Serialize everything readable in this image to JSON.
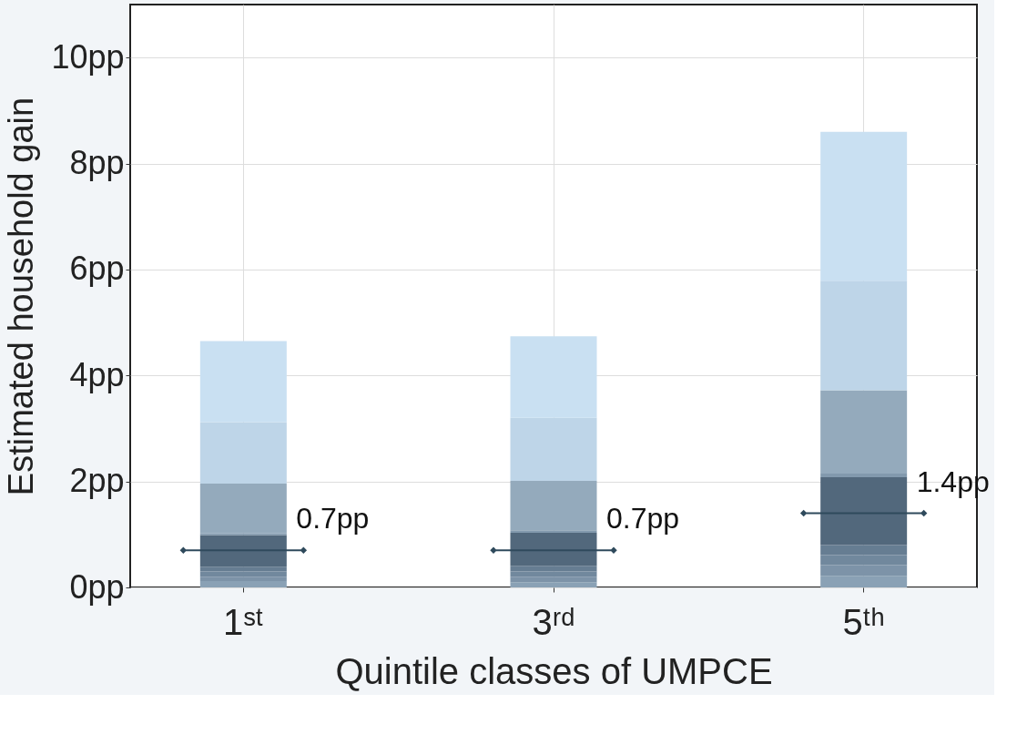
{
  "chart_data": {
    "type": "bar",
    "stacked": true,
    "xlabel": "Quintile classes of UMPCE",
    "ylabel": "Estimated household gain",
    "categories": [
      "1ˢᵗ",
      "3ʳᵈ",
      "5ᵗʰ"
    ],
    "series": [
      {
        "color": "#8aa1b5",
        "values": [
          0.12,
          0.1,
          0.22
        ]
      },
      {
        "color": "#7d93a8",
        "values": [
          0.08,
          0.1,
          0.2
        ]
      },
      {
        "color": "#71889d",
        "values": [
          0.1,
          0.1,
          0.19
        ]
      },
      {
        "color": "#667d92",
        "values": [
          0.09,
          0.11,
          0.19
        ]
      },
      {
        "color": "#52687c",
        "values": [
          0.6,
          0.62,
          1.28
        ]
      },
      {
        "color": "#8299ad",
        "values": [
          0.03,
          0.05,
          0.07
        ]
      },
      {
        "color": "#94aabc",
        "values": [
          0.94,
          0.93,
          1.57
        ]
      },
      {
        "color": "#bed5e8",
        "values": [
          1.16,
          1.19,
          2.07
        ]
      },
      {
        "color": "#c9e0f2",
        "values": [
          1.53,
          1.54,
          2.81
        ]
      },
      {
        "type": "scatter",
        "color": "#2f4a5c",
        "values": [
          0.7,
          0.7,
          1.4
        ],
        "value_labels": [
          "0.7pp",
          "0.7pp",
          "1.4pp"
        ]
      }
    ],
    "ylim": [
      0,
      11
    ],
    "yticks": [
      {
        "value": 0,
        "label": "0pp"
      },
      {
        "value": 2,
        "label": "2pp"
      },
      {
        "value": 4,
        "label": "4pp"
      },
      {
        "value": 6,
        "label": "6pp"
      },
      {
        "value": 8,
        "label": "8pp"
      },
      {
        "value": 10,
        "label": "10pp"
      }
    ],
    "grid": true
  }
}
